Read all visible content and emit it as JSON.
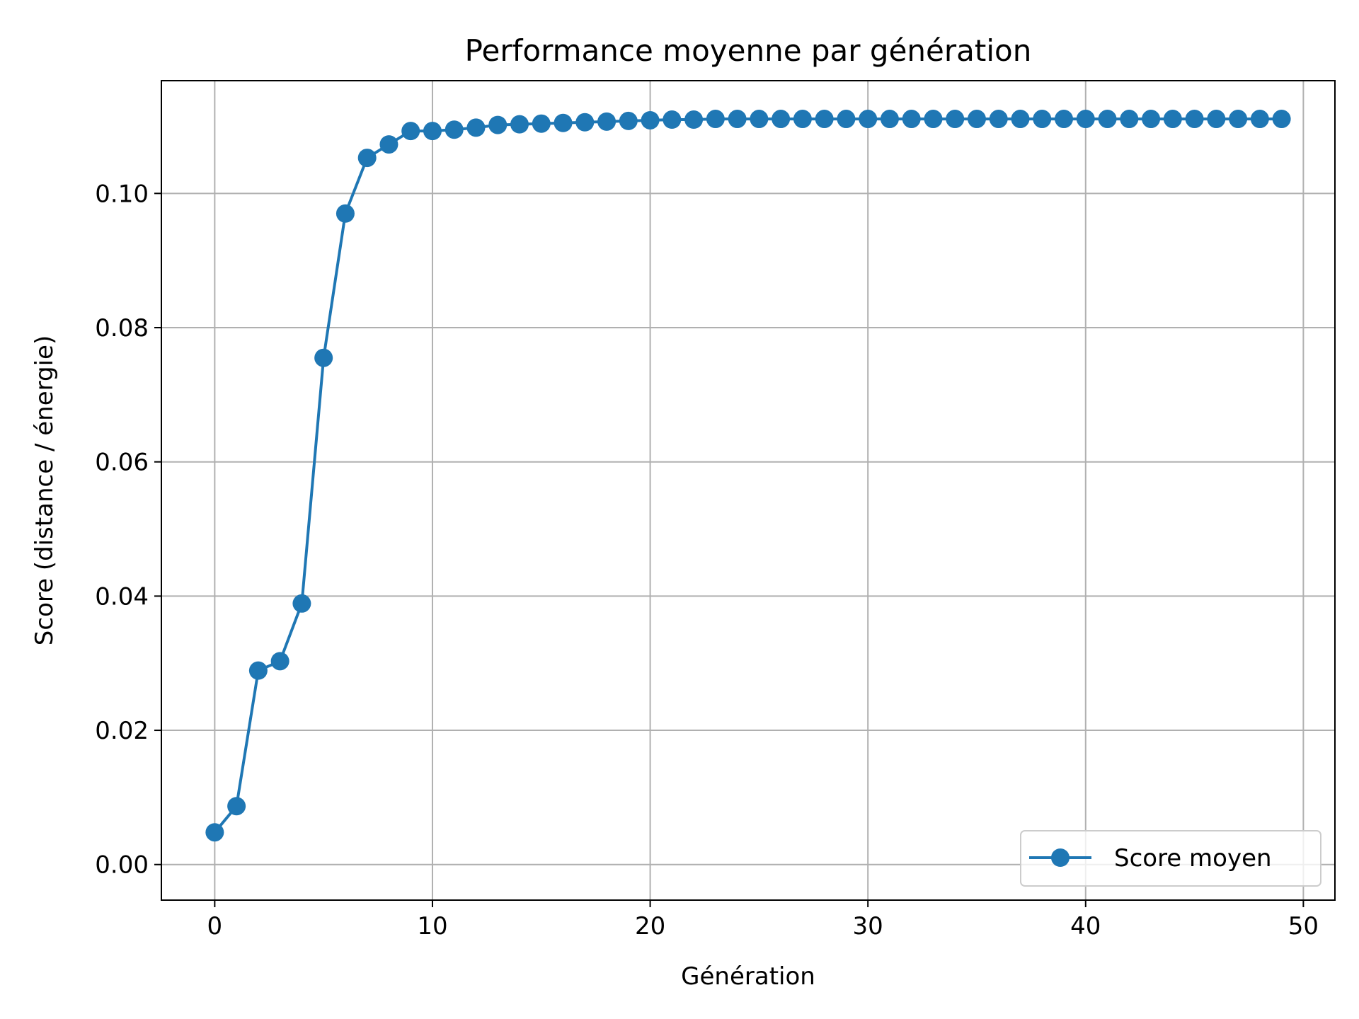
{
  "chart_data": {
    "type": "line",
    "title": "Performance moyenne par génération",
    "xlabel": "Génération",
    "ylabel": "Score (distance / énergie)",
    "xlim": [
      -2.45,
      51.45
    ],
    "ylim": [
      -0.0053,
      0.1168
    ],
    "xticks": [
      0,
      10,
      20,
      30,
      40,
      50
    ],
    "xtick_labels": [
      "0",
      "10",
      "20",
      "30",
      "40",
      "50"
    ],
    "yticks": [
      0.0,
      0.02,
      0.04,
      0.06,
      0.08,
      0.1
    ],
    "ytick_labels": [
      "0.00",
      "0.02",
      "0.04",
      "0.06",
      "0.08",
      "0.10"
    ],
    "grid": true,
    "legend_position": "lower right",
    "series": [
      {
        "name": "Score moyen",
        "color": "#1f77b4",
        "marker": "circle",
        "x": [
          0,
          1,
          2,
          3,
          4,
          5,
          6,
          7,
          8,
          9,
          10,
          11,
          12,
          13,
          14,
          15,
          16,
          17,
          18,
          19,
          20,
          21,
          22,
          23,
          24,
          25,
          26,
          27,
          28,
          29,
          30,
          31,
          32,
          33,
          34,
          35,
          36,
          37,
          38,
          39,
          40,
          41,
          42,
          43,
          44,
          45,
          46,
          47,
          48,
          49
        ],
        "values": [
          0.0048,
          0.0087,
          0.0289,
          0.0303,
          0.0389,
          0.0755,
          0.097,
          0.1053,
          0.1073,
          0.1093,
          0.1093,
          0.1095,
          0.1098,
          0.1102,
          0.1103,
          0.1104,
          0.1105,
          0.1106,
          0.1107,
          0.1108,
          0.1109,
          0.111,
          0.111,
          0.1111,
          0.1111,
          0.1111,
          0.1111,
          0.1111,
          0.1111,
          0.1111,
          0.1111,
          0.1111,
          0.1111,
          0.1111,
          0.1111,
          0.1111,
          0.1111,
          0.1111,
          0.1111,
          0.1111,
          0.1111,
          0.1111,
          0.1111,
          0.1111,
          0.1111,
          0.1111,
          0.1111,
          0.1111,
          0.1111,
          0.1111
        ]
      }
    ]
  },
  "colors": {
    "grid": "#b0b0b0",
    "axes": "#000000",
    "legend_border": "#cccccc"
  }
}
